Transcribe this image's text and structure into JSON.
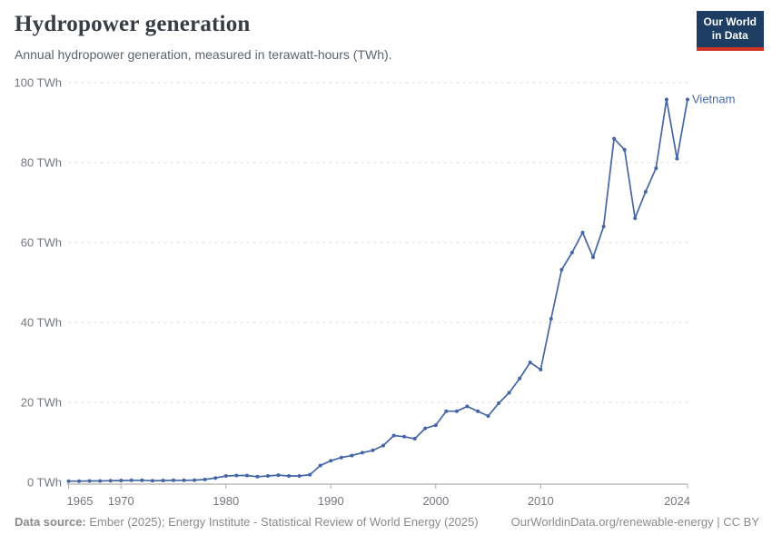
{
  "header": {
    "title": "Hydropower generation",
    "subtitle": "Annual hydropower generation, measured in terawatt-hours (TWh).",
    "logo": {
      "line1": "Our World",
      "line2": "in Data"
    }
  },
  "footer": {
    "source_label": "Data source:",
    "source_text": "Ember (2025); Energy Institute - Statistical Review of World Energy (2025)",
    "link_text": "OurWorldinData.org/renewable-energy | CC BY"
  },
  "colors": {
    "series_blue": "#4566a5",
    "logo_navy": "#1d3d63",
    "logo_red": "#d13226",
    "gridline": "#dcdcdc",
    "axis": "#9a9a9a",
    "tick_label": "#73777f"
  },
  "chart_data": {
    "type": "line",
    "title": "Hydropower generation",
    "subtitle": "Annual hydropower generation, measured in terawatt-hours (TWh).",
    "unit": "TWh",
    "xlim": [
      1965,
      2024
    ],
    "ylim": [
      0,
      100
    ],
    "grid": "dashed-horizontal",
    "legend_position": "end-of-line-label",
    "x_ticks": [
      1965,
      1970,
      1980,
      1990,
      2000,
      2010,
      2024
    ],
    "y_ticks": [
      0,
      20,
      40,
      60,
      80,
      100
    ],
    "y_tick_suffix": " TWh",
    "series": [
      {
        "name": "Vietnam",
        "color": "#4566a5",
        "x": [
          1965,
          1966,
          1967,
          1968,
          1969,
          1970,
          1971,
          1972,
          1973,
          1974,
          1975,
          1976,
          1977,
          1978,
          1979,
          1980,
          1981,
          1982,
          1983,
          1984,
          1985,
          1986,
          1987,
          1988,
          1989,
          1990,
          1991,
          1992,
          1993,
          1994,
          1995,
          1996,
          1997,
          1998,
          1999,
          2000,
          2001,
          2002,
          2003,
          2004,
          2005,
          2006,
          2007,
          2008,
          2009,
          2010,
          2011,
          2012,
          2013,
          2014,
          2015,
          2016,
          2017,
          2018,
          2019,
          2020,
          2021,
          2022,
          2023,
          2024
        ],
        "values": [
          0.3,
          0.3,
          0.35,
          0.35,
          0.4,
          0.45,
          0.5,
          0.5,
          0.4,
          0.45,
          0.5,
          0.5,
          0.55,
          0.7,
          1.1,
          1.6,
          1.7,
          1.7,
          1.4,
          1.6,
          1.8,
          1.6,
          1.6,
          1.9,
          4.2,
          5.4,
          6.2,
          6.7,
          7.4,
          8.0,
          9.2,
          11.7,
          11.4,
          10.9,
          13.5,
          14.3,
          17.8,
          17.8,
          19.0,
          17.8,
          16.6,
          19.8,
          22.4,
          26.0,
          30.0,
          28.2,
          40.9,
          53.2,
          57.5,
          62.5,
          56.3,
          64.0,
          86.0,
          83.2,
          66.1,
          72.7,
          78.6,
          95.8,
          81.0,
          95.8
        ]
      }
    ]
  }
}
